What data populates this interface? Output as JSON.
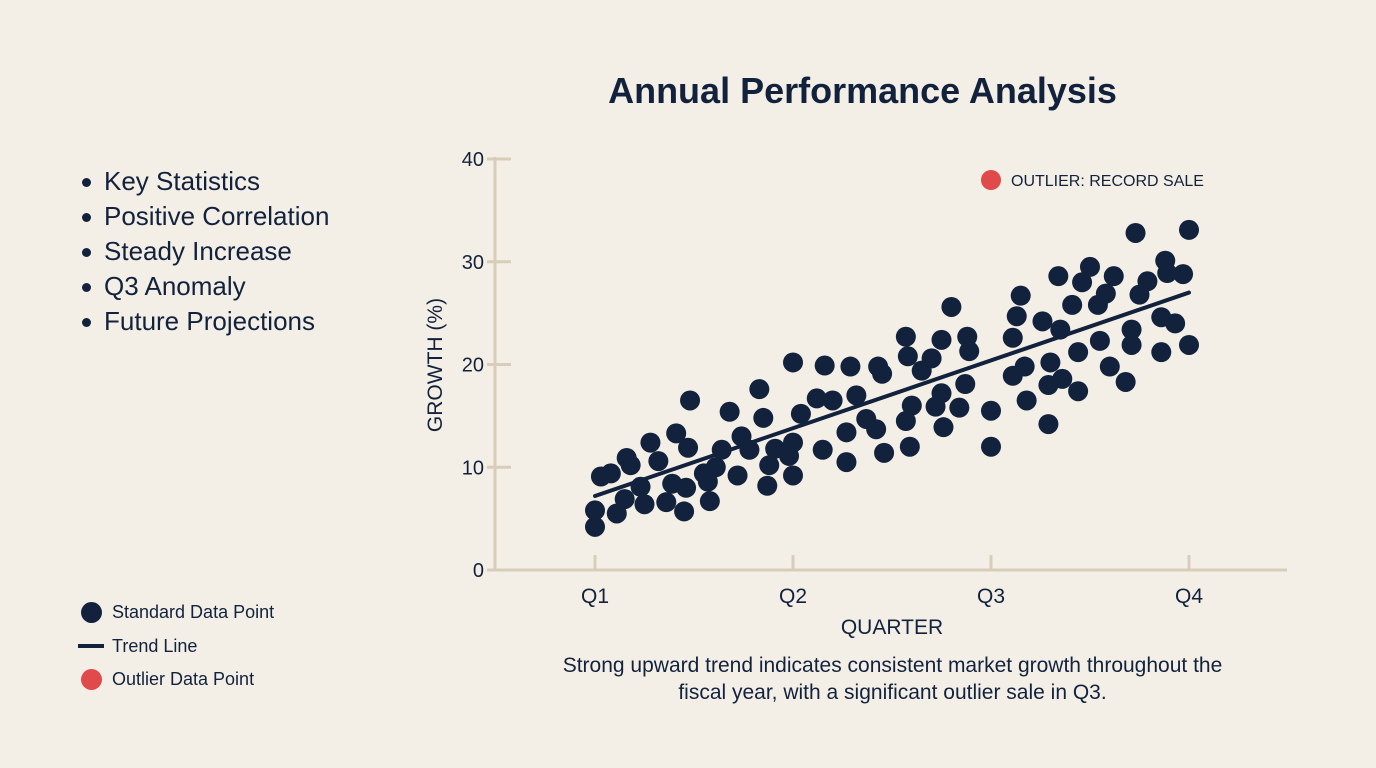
{
  "page": {
    "title": "Annual Performance Analysis",
    "bullets": [
      "Key Statistics",
      "Positive Correlation",
      "Steady Increase",
      "Q3 Anomaly",
      "Future Projections"
    ],
    "legend": {
      "standard": "Standard Data Point",
      "trend": "Trend Line",
      "outlier": "Outlier Data Point"
    },
    "caption_line1": "Strong upward trend indicates consistent market growth throughout the",
    "caption_line2": "fiscal year, with a significant outlier sale in Q3.",
    "colors": {
      "background": "#f4efe6",
      "primary": "#12223d",
      "outlier": "#e04a4a",
      "axis": "#d8cdb9"
    }
  },
  "chart_data": {
    "type": "scatter",
    "title": "Annual Performance Analysis",
    "xlabel": "QUARTER",
    "ylabel": "GROWTH (%)",
    "categories": [
      "Q1",
      "Q2",
      "Q3",
      "Q4"
    ],
    "xlim": [
      1,
      4
    ],
    "ylim": [
      0,
      40
    ],
    "yticks": [
      0,
      10,
      20,
      30,
      40
    ],
    "outlier_label": "OUTLIER: RECORD SALE",
    "trend": {
      "x": [
        1,
        4
      ],
      "y": [
        7.2,
        27
      ]
    },
    "points": [
      {
        "x": 1.0,
        "y": 4.2
      },
      {
        "x": 1.0,
        "y": 5.8
      },
      {
        "x": 1.03,
        "y": 9.1
      },
      {
        "x": 1.08,
        "y": 9.4
      },
      {
        "x": 1.11,
        "y": 5.5
      },
      {
        "x": 1.15,
        "y": 6.9
      },
      {
        "x": 1.16,
        "y": 10.9
      },
      {
        "x": 1.18,
        "y": 10.2
      },
      {
        "x": 1.23,
        "y": 8.1
      },
      {
        "x": 1.25,
        "y": 6.4
      },
      {
        "x": 1.28,
        "y": 12.4
      },
      {
        "x": 1.32,
        "y": 10.6
      },
      {
        "x": 1.36,
        "y": 6.6
      },
      {
        "x": 1.39,
        "y": 8.4
      },
      {
        "x": 1.41,
        "y": 13.3
      },
      {
        "x": 1.45,
        "y": 5.7
      },
      {
        "x": 1.46,
        "y": 8.0
      },
      {
        "x": 1.47,
        "y": 11.9
      },
      {
        "x": 1.48,
        "y": 16.5
      },
      {
        "x": 1.55,
        "y": 9.4
      },
      {
        "x": 1.57,
        "y": 8.6
      },
      {
        "x": 1.58,
        "y": 6.7
      },
      {
        "x": 1.61,
        "y": 10.0
      },
      {
        "x": 1.64,
        "y": 11.7
      },
      {
        "x": 1.68,
        "y": 15.4
      },
      {
        "x": 1.72,
        "y": 9.2
      },
      {
        "x": 1.74,
        "y": 13.0
      },
      {
        "x": 1.78,
        "y": 11.7
      },
      {
        "x": 1.83,
        "y": 17.6
      },
      {
        "x": 1.85,
        "y": 14.8
      },
      {
        "x": 1.87,
        "y": 8.2
      },
      {
        "x": 1.88,
        "y": 10.2
      },
      {
        "x": 1.91,
        "y": 11.8
      },
      {
        "x": 1.98,
        "y": 11.1
      },
      {
        "x": 2.0,
        "y": 12.4
      },
      {
        "x": 2.0,
        "y": 9.2
      },
      {
        "x": 2.0,
        "y": 20.2
      },
      {
        "x": 2.04,
        "y": 15.2
      },
      {
        "x": 2.12,
        "y": 16.7
      },
      {
        "x": 2.15,
        "y": 11.7
      },
      {
        "x": 2.16,
        "y": 19.9
      },
      {
        "x": 2.2,
        "y": 16.5
      },
      {
        "x": 2.27,
        "y": 13.4
      },
      {
        "x": 2.27,
        "y": 10.5
      },
      {
        "x": 2.29,
        "y": 19.8
      },
      {
        "x": 2.32,
        "y": 17.0
      },
      {
        "x": 2.37,
        "y": 14.7
      },
      {
        "x": 2.42,
        "y": 13.7
      },
      {
        "x": 2.43,
        "y": 19.8
      },
      {
        "x": 2.45,
        "y": 19.1
      },
      {
        "x": 2.46,
        "y": 11.4
      },
      {
        "x": 2.57,
        "y": 22.7
      },
      {
        "x": 2.57,
        "y": 14.5
      },
      {
        "x": 2.58,
        "y": 20.8
      },
      {
        "x": 2.59,
        "y": 12.0
      },
      {
        "x": 2.6,
        "y": 16.0
      },
      {
        "x": 2.65,
        "y": 19.4
      },
      {
        "x": 2.7,
        "y": 20.6
      },
      {
        "x": 2.72,
        "y": 15.9
      },
      {
        "x": 2.75,
        "y": 22.4
      },
      {
        "x": 2.75,
        "y": 17.2
      },
      {
        "x": 2.76,
        "y": 13.9
      },
      {
        "x": 2.8,
        "y": 25.6
      },
      {
        "x": 2.84,
        "y": 15.8
      },
      {
        "x": 2.87,
        "y": 18.1
      },
      {
        "x": 2.88,
        "y": 22.7
      },
      {
        "x": 2.89,
        "y": 21.3
      },
      {
        "x": 3.0,
        "y": 12.0
      },
      {
        "x": 3.0,
        "y": 15.5
      },
      {
        "x": 3.11,
        "y": 22.6
      },
      {
        "x": 3.11,
        "y": 18.9
      },
      {
        "x": 3.13,
        "y": 24.7
      },
      {
        "x": 3.15,
        "y": 26.7
      },
      {
        "x": 3.17,
        "y": 19.8
      },
      {
        "x": 3.18,
        "y": 16.5
      },
      {
        "x": 3.26,
        "y": 24.2
      },
      {
        "x": 3.29,
        "y": 14.2
      },
      {
        "x": 3.29,
        "y": 18.0
      },
      {
        "x": 3.3,
        "y": 20.2
      },
      {
        "x": 3.34,
        "y": 28.6
      },
      {
        "x": 3.35,
        "y": 23.4
      },
      {
        "x": 3.36,
        "y": 18.6
      },
      {
        "x": 3.41,
        "y": 25.8
      },
      {
        "x": 3.44,
        "y": 17.4
      },
      {
        "x": 3.44,
        "y": 21.2
      },
      {
        "x": 3.46,
        "y": 28.0
      },
      {
        "x": 3.5,
        "y": 29.5
      },
      {
        "x": 3.54,
        "y": 25.8
      },
      {
        "x": 3.55,
        "y": 22.3
      },
      {
        "x": 3.58,
        "y": 26.9
      },
      {
        "x": 3.6,
        "y": 19.8
      },
      {
        "x": 3.62,
        "y": 28.6
      },
      {
        "x": 3.68,
        "y": 18.3
      },
      {
        "x": 3.71,
        "y": 23.4
      },
      {
        "x": 3.71,
        "y": 21.9
      },
      {
        "x": 3.73,
        "y": 32.8
      },
      {
        "x": 3.75,
        "y": 26.8
      },
      {
        "x": 3.79,
        "y": 28.1
      },
      {
        "x": 3.86,
        "y": 24.6
      },
      {
        "x": 3.86,
        "y": 21.2
      },
      {
        "x": 3.88,
        "y": 30.1
      },
      {
        "x": 3.89,
        "y": 28.9
      },
      {
        "x": 3.93,
        "y": 24.0
      },
      {
        "x": 3.97,
        "y": 28.8
      },
      {
        "x": 4.0,
        "y": 33.1
      },
      {
        "x": 4.0,
        "y": 21.9
      }
    ]
  }
}
